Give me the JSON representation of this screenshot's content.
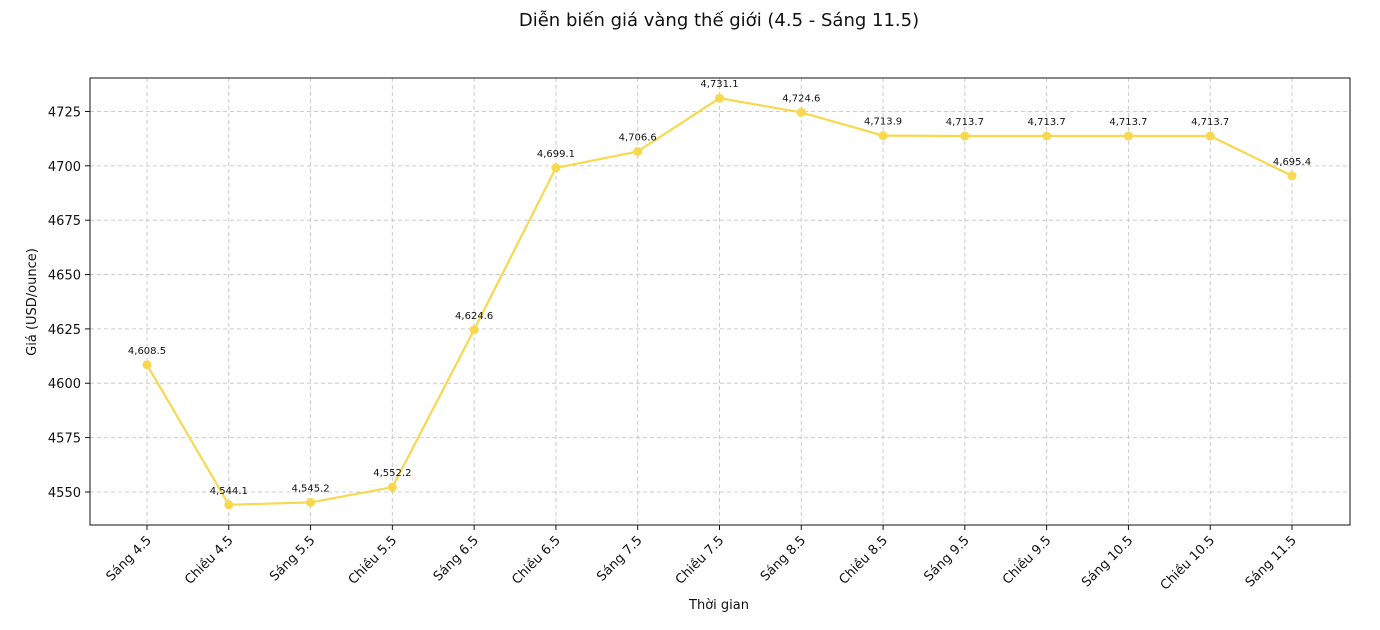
{
  "chart_data": {
    "type": "line",
    "title": "Diễn biến giá vàng thế giới (4.5 - Sáng 11.5)",
    "xlabel": "Thời gian",
    "ylabel": "Giá (USD/ounce)",
    "categories": [
      "Sáng 4.5",
      "Chiều 4.5",
      "Sáng 5.5",
      "Chiều 5.5",
      "Sáng 6.5",
      "Chiều 6.5",
      "Sáng 7.5",
      "Chiều 7.5",
      "Sáng 8.5",
      "Chiều 8.5",
      "Sáng 9.5",
      "Chiều 9.5",
      "Sáng 10.5",
      "Chiều 10.5",
      "Sáng 11.5"
    ],
    "values": [
      4608.5,
      4544.1,
      4545.2,
      4552.2,
      4624.6,
      4699.1,
      4706.6,
      4731.1,
      4724.6,
      4713.9,
      4713.7,
      4713.7,
      4713.7,
      4713.7,
      4695.4
    ],
    "data_labels": [
      "4,608.5",
      "4,544.1",
      "4,545.2",
      "4,552.2",
      "4,624.6",
      "4,699.1",
      "4,706.6",
      "4,731.1",
      "4,724.6",
      "4,713.9",
      "4,713.7",
      "4,713.7",
      "4,713.7",
      "4,713.7",
      "4,695.4"
    ],
    "ylim": [
      4534.8,
      4740.4
    ],
    "yticks": [
      4550,
      4575,
      4600,
      4625,
      4650,
      4675,
      4700,
      4725
    ],
    "grid": true,
    "line_color": "#f7d84e"
  }
}
